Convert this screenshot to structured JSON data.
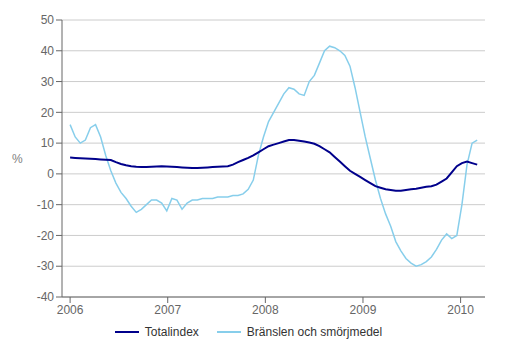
{
  "chart_data": {
    "type": "line",
    "ylabel": "%",
    "ylim": [
      -40,
      50
    ],
    "yticks": [
      -40,
      -30,
      -20,
      -10,
      0,
      10,
      20,
      30,
      40,
      50
    ],
    "xlim": [
      2005.917,
      2010.25
    ],
    "xticks": [
      2006,
      2007,
      2008,
      2009,
      2010
    ],
    "grid": true,
    "x": [
      2006.0,
      2006.052125,
      2006.10425,
      2006.156375,
      2006.2085,
      2006.260625,
      2006.31275,
      2006.364875,
      2006.417,
      2006.469125,
      2006.52125,
      2006.573375,
      2006.6255,
      2006.677625,
      2006.72975,
      2006.781875,
      2006.834,
      2006.886125,
      2006.93825,
      2006.990375,
      2007.0425,
      2007.094625,
      2007.14675,
      2007.198875,
      2007.251,
      2007.303125,
      2007.35525,
      2007.407375,
      2007.4595,
      2007.511625,
      2007.56375,
      2007.615875,
      2007.668,
      2007.720125,
      2007.77225,
      2007.824375,
      2007.8765,
      2007.928625,
      2007.98075,
      2008.032875,
      2008.085,
      2008.137125,
      2008.18925,
      2008.241375,
      2008.2935,
      2008.345625,
      2008.39775,
      2008.449875,
      2008.502,
      2008.554125,
      2008.60625,
      2008.658375,
      2008.7105,
      2008.762625,
      2008.81475,
      2008.866875,
      2008.919,
      2008.971125,
      2009.02325,
      2009.075375,
      2009.1275,
      2009.179625,
      2009.23175,
      2009.283875,
      2009.336,
      2009.388125,
      2009.44025,
      2009.492375,
      2009.5445,
      2009.596625,
      2009.64875,
      2009.700875,
      2009.753,
      2009.805125,
      2009.85725,
      2009.909375,
      2009.9615,
      2010.013625,
      2010.06575,
      2010.117875,
      2010.17
    ],
    "series": [
      {
        "name": "Totalindex",
        "color": "#00008B",
        "values": [
          5.3,
          5.2,
          5.1,
          5.0,
          4.9,
          4.8,
          4.7,
          4.6,
          4.5,
          3.8,
          3.2,
          2.8,
          2.5,
          2.3,
          2.2,
          2.2,
          2.3,
          2.4,
          2.5,
          2.4,
          2.3,
          2.2,
          2.1,
          2.0,
          1.9,
          1.9,
          2.0,
          2.1,
          2.2,
          2.3,
          2.4,
          2.5,
          3.0,
          3.8,
          4.5,
          5.2,
          6.0,
          7.0,
          8.0,
          9.0,
          9.5,
          10.0,
          10.5,
          11.0,
          11.0,
          10.8,
          10.5,
          10.2,
          9.8,
          9.0,
          8.0,
          7.0,
          5.5,
          4.0,
          2.5,
          1.0,
          0.0,
          -1.0,
          -2.0,
          -3.0,
          -4.0,
          -4.5,
          -5.0,
          -5.2,
          -5.5,
          -5.5,
          -5.2,
          -5.0,
          -4.8,
          -4.5,
          -4.2,
          -4.0,
          -3.5,
          -2.5,
          -1.5,
          0.5,
          2.5,
          3.5,
          4.0,
          3.5,
          3.0
        ]
      },
      {
        "name": "Bränslen och smörjmedel",
        "color": "#87CEEB",
        "values": [
          16.0,
          12.0,
          10.0,
          11.0,
          15.0,
          16.0,
          12.0,
          6.0,
          1.0,
          -3.0,
          -6.0,
          -8.0,
          -10.5,
          -12.5,
          -11.5,
          -10.0,
          -8.5,
          -8.5,
          -9.5,
          -12.0,
          -8.0,
          -8.5,
          -11.5,
          -9.5,
          -8.5,
          -8.5,
          -8.0,
          -8.0,
          -8.0,
          -7.5,
          -7.5,
          -7.5,
          -7.0,
          -7.0,
          -6.5,
          -5.0,
          -2.0,
          6.0,
          12.0,
          17.0,
          20.0,
          23.0,
          26.0,
          28.0,
          27.5,
          26.0,
          25.5,
          30.0,
          32.0,
          36.0,
          40.0,
          41.5,
          41.0,
          40.0,
          38.5,
          35.0,
          28.0,
          20.0,
          12.0,
          5.0,
          -2.0,
          -8.0,
          -13.0,
          -17.0,
          -22.0,
          -25.0,
          -27.5,
          -29.0,
          -30.0,
          -29.5,
          -28.5,
          -27.0,
          -24.5,
          -21.5,
          -19.5,
          -21.0,
          -20.0,
          -10.0,
          3.0,
          10.0,
          11.0
        ]
      }
    ]
  }
}
